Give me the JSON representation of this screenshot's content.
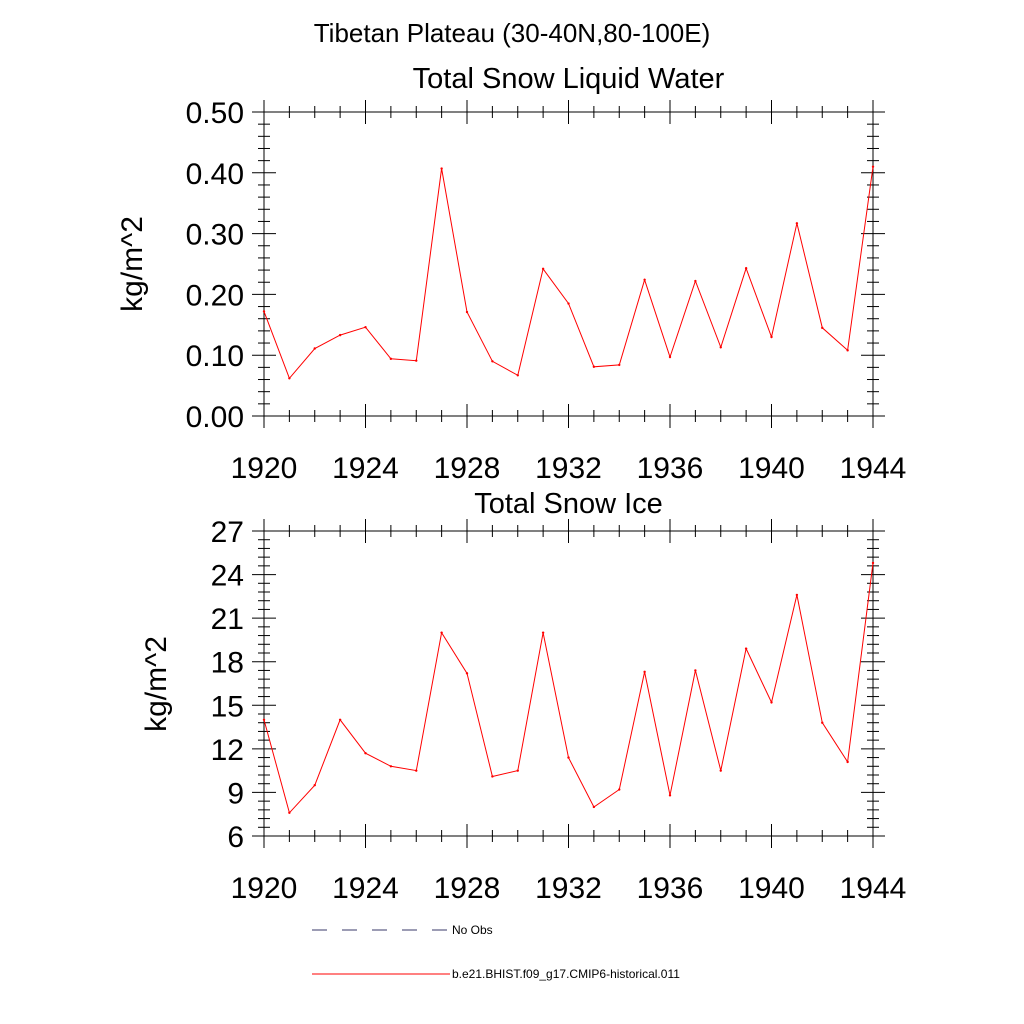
{
  "figure": {
    "suptitle": "Tibetan Plateau (30-40N,80-100E)",
    "legend": [
      {
        "label": "No Obs",
        "color": "#3a3a6a",
        "style": "dashed"
      },
      {
        "label": "b.e21.BHIST.f09_g17.CMIP6-historical.011",
        "color": "#ff0000",
        "style": "solid"
      }
    ]
  },
  "chart_data": [
    {
      "type": "line",
      "title": "Total Snow Liquid Water",
      "ylabel": "kg/m^2",
      "xlabel": "",
      "xlim": [
        1920,
        1944
      ],
      "ylim": [
        0,
        0.5
      ],
      "xticks": [
        1920,
        1924,
        1928,
        1932,
        1936,
        1940,
        1944
      ],
      "yticks": [
        0,
        0.1,
        0.2,
        0.3,
        0.4,
        0.5
      ],
      "ytick_labels": [
        "0.00",
        "0.10",
        "0.20",
        "0.30",
        "0.40",
        "0.50"
      ],
      "series": [
        {
          "name": "b.e21.BHIST.f09_g17.CMIP6-historical.011",
          "color": "#ff0000",
          "x": [
            1920,
            1921,
            1922,
            1923,
            1924,
            1925,
            1926,
            1927,
            1928,
            1929,
            1930,
            1931,
            1932,
            1933,
            1934,
            1935,
            1936,
            1937,
            1938,
            1939,
            1940,
            1941,
            1942,
            1943,
            1944
          ],
          "y": [
            0.172,
            0.062,
            0.111,
            0.133,
            0.146,
            0.094,
            0.091,
            0.407,
            0.171,
            0.09,
            0.067,
            0.242,
            0.185,
            0.081,
            0.084,
            0.224,
            0.097,
            0.222,
            0.113,
            0.243,
            0.13,
            0.317,
            0.145,
            0.108,
            0.41
          ]
        }
      ]
    },
    {
      "type": "line",
      "title": "Total Snow Ice",
      "ylabel": "kg/m^2",
      "xlabel": "",
      "xlim": [
        1920,
        1944
      ],
      "ylim": [
        6,
        27
      ],
      "xticks": [
        1920,
        1924,
        1928,
        1932,
        1936,
        1940,
        1944
      ],
      "yticks": [
        6,
        9,
        12,
        15,
        18,
        21,
        24,
        27
      ],
      "ytick_labels": [
        "6",
        "9",
        "12",
        "15",
        "18",
        "21",
        "24",
        "27"
      ],
      "series": [
        {
          "name": "b.e21.BHIST.f09_g17.CMIP6-historical.011",
          "color": "#ff0000",
          "x": [
            1920,
            1921,
            1922,
            1923,
            1924,
            1925,
            1926,
            1927,
            1928,
            1929,
            1930,
            1931,
            1932,
            1933,
            1934,
            1935,
            1936,
            1937,
            1938,
            1939,
            1940,
            1941,
            1942,
            1943,
            1944
          ],
          "y": [
            14.0,
            7.6,
            9.5,
            14.0,
            11.7,
            10.8,
            10.5,
            20.0,
            17.2,
            10.1,
            10.5,
            20.0,
            11.4,
            8.0,
            9.2,
            17.3,
            8.8,
            17.4,
            10.5,
            18.9,
            15.2,
            22.6,
            13.8,
            11.1,
            24.8
          ]
        }
      ]
    }
  ]
}
